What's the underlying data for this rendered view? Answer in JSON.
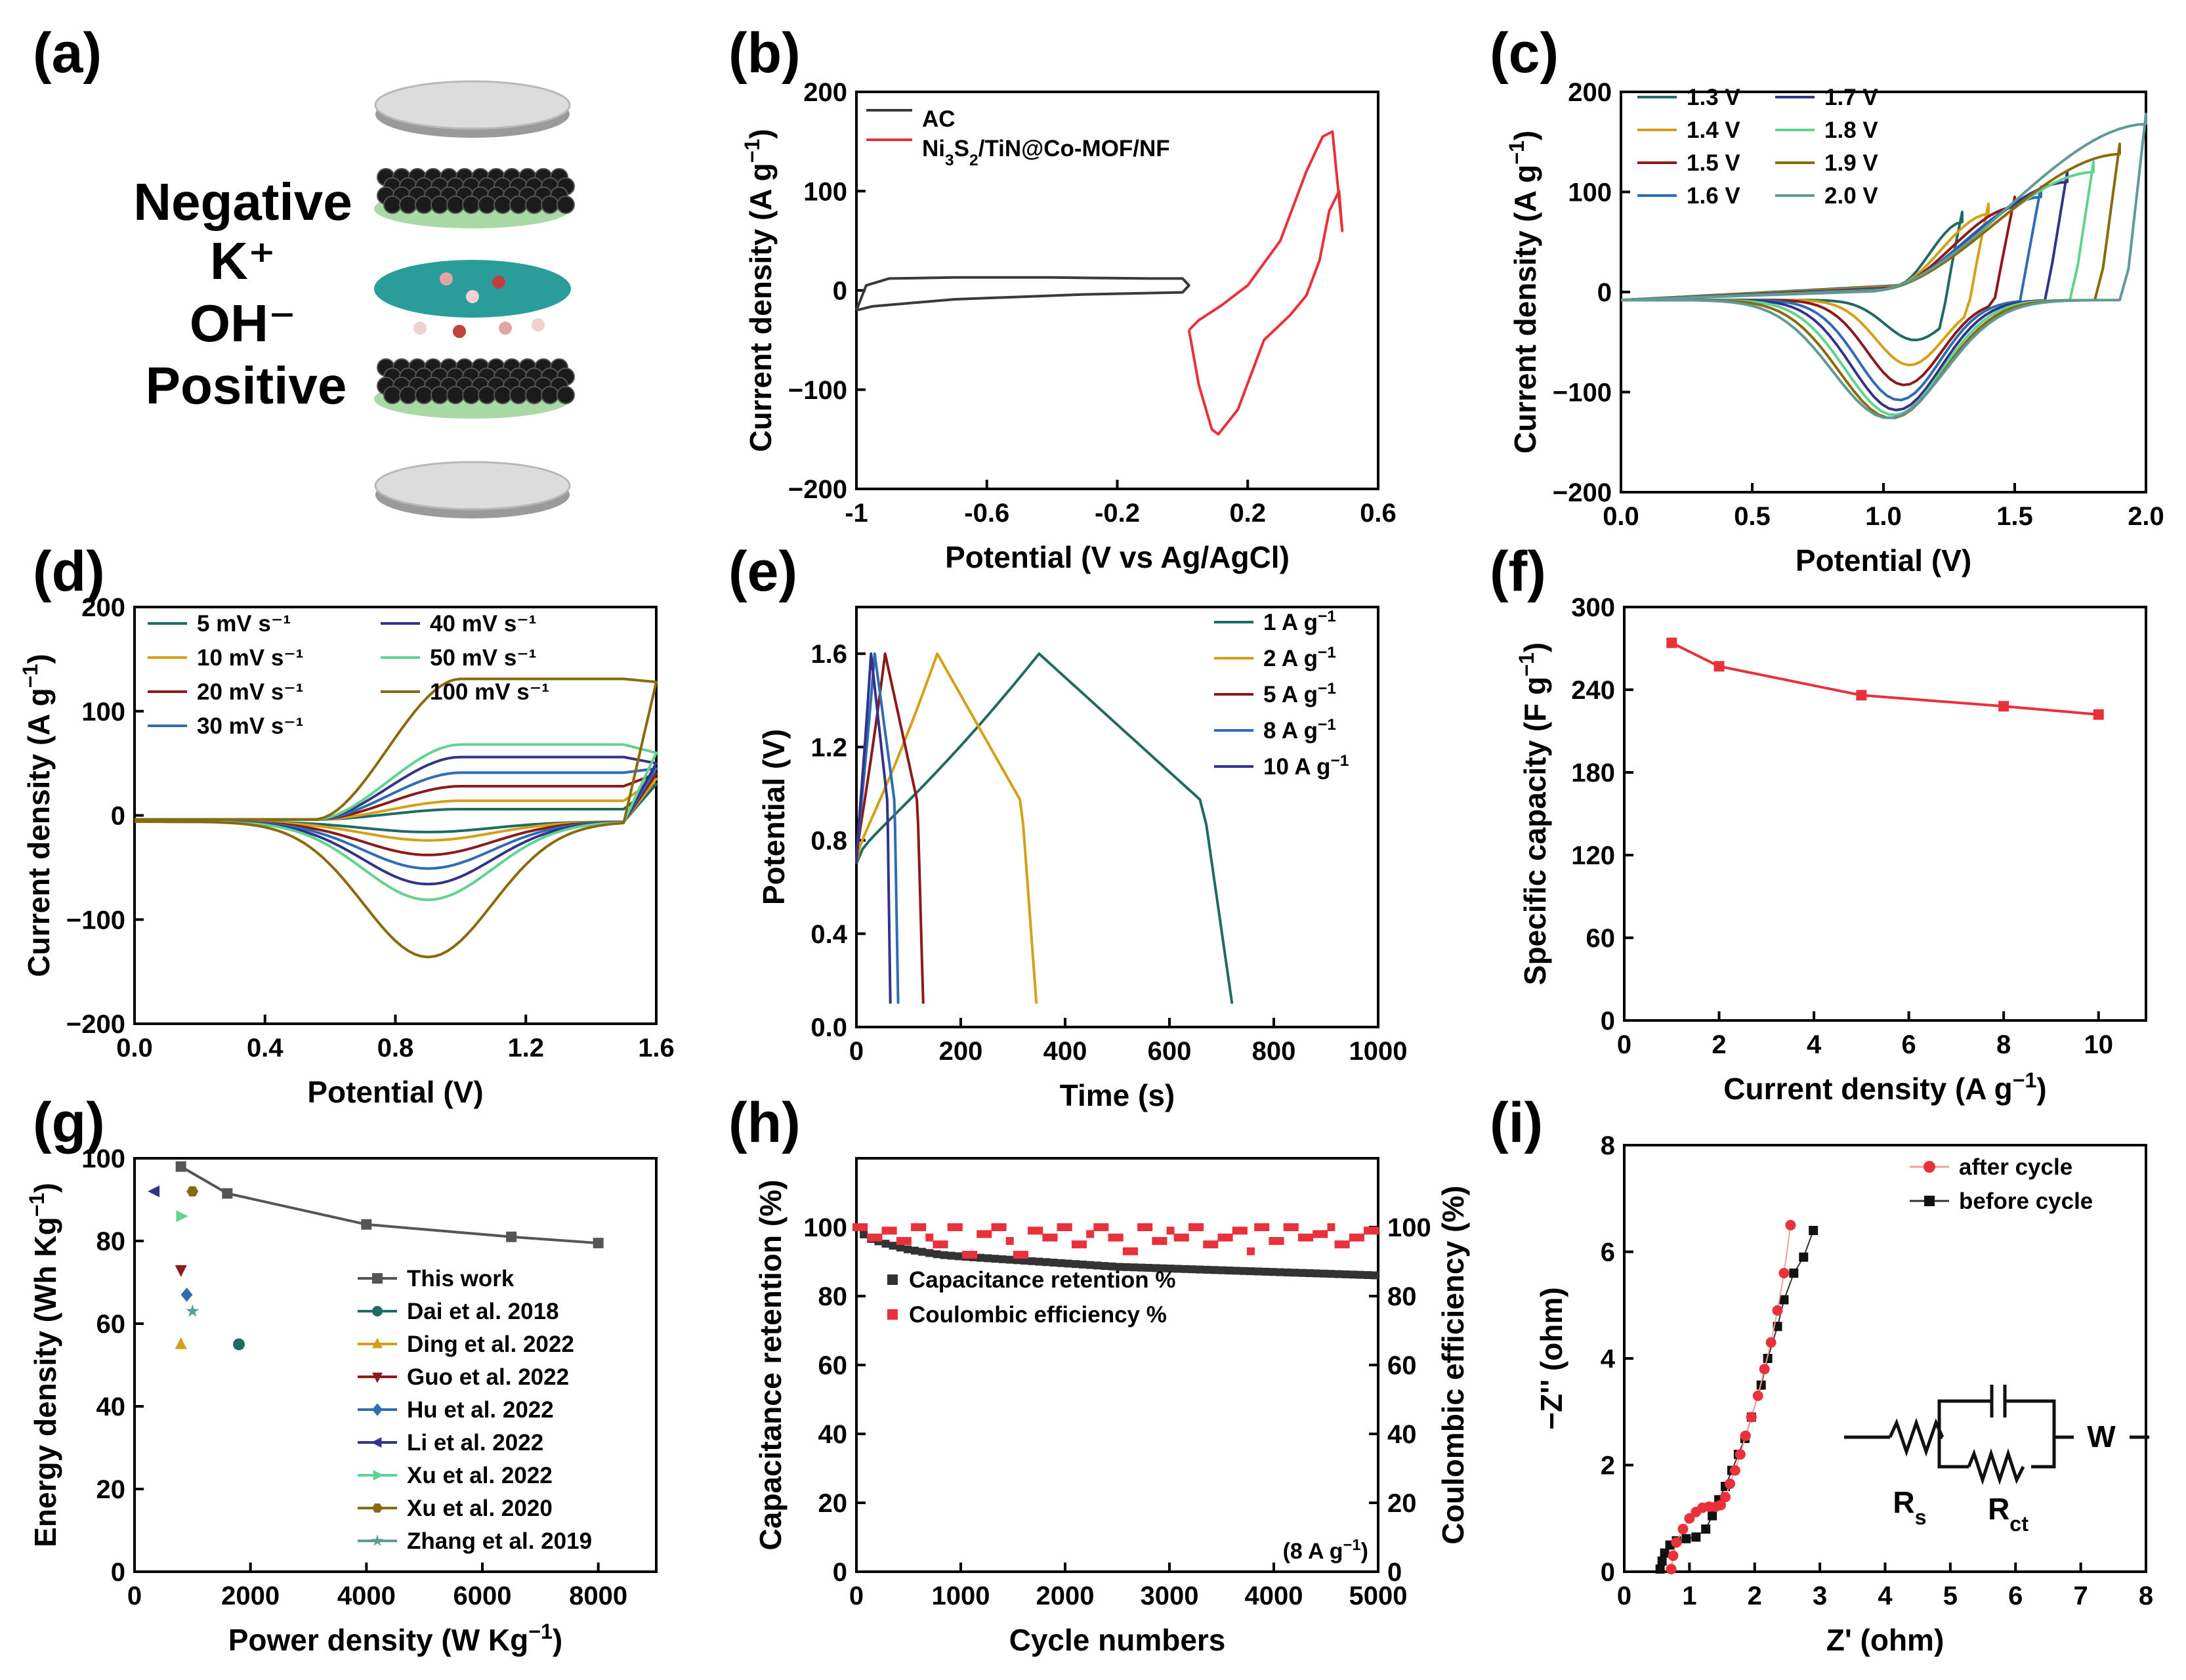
{
  "panel_labels": [
    "(a)",
    "(b)",
    "(c)",
    "(d)",
    "(e)",
    "(f)",
    "(g)",
    "(h)",
    "(i)"
  ],
  "scheme": {
    "negative": "Negative",
    "cation": "K⁺",
    "anion": "OH⁻",
    "positive": "Positive"
  },
  "colors": {
    "ac": "#3a3a3a",
    "ni3s2": "#e8313a",
    "red_marker": "#e8313a",
    "black_marker": "#333333",
    "cv_series": [
      "#1f6b62",
      "#d4a017",
      "#8b1a1a",
      "#2e6db4",
      "#33338c",
      "#5fd38f",
      "#8a6a0c",
      "#5f9a98"
    ]
  },
  "chart_data": [
    {
      "id": "b",
      "type": "line",
      "xlabel": "Potential (V vs Ag/AgCl)",
      "ylabel": "Current density (A g⁻¹)",
      "xlim": [
        -1,
        0.6
      ],
      "ylim": [
        -200,
        200
      ],
      "xticks": [
        "-1",
        "-0.6",
        "-0.2",
        "0.2",
        "0.6"
      ],
      "yticks": [
        "−200",
        "−100",
        "0",
        "100",
        "200"
      ],
      "legend": [
        "AC",
        "Ni3S2/TiN@Co-MOF/NF"
      ],
      "series": [
        {
          "name": "AC",
          "x": [
            -1.0,
            -0.97,
            -0.9,
            -0.7,
            -0.4,
            -0.1,
            0.0,
            0.02,
            0.0,
            -0.3,
            -0.7,
            -0.95,
            -1.0
          ],
          "y": [
            -20,
            5,
            12,
            13,
            13,
            12,
            12,
            5,
            -2,
            -4,
            -9,
            -16,
            -20
          ]
        },
        {
          "name": "Ni3S2/TiN@Co-MOF/NF",
          "x": [
            0.02,
            0.05,
            0.09,
            0.11,
            0.17,
            0.25,
            0.33,
            0.38,
            0.42,
            0.45,
            0.48,
            0.49,
            0.46,
            0.43,
            0.38,
            0.3,
            0.2,
            0.12,
            0.05,
            0.02
          ],
          "y": [
            -40,
            -95,
            -140,
            -145,
            -120,
            -50,
            -25,
            -5,
            30,
            80,
            100,
            60,
            160,
            155,
            120,
            50,
            5,
            -15,
            -30,
            -40
          ]
        }
      ]
    },
    {
      "id": "c",
      "type": "line",
      "xlabel": "Potential (V)",
      "ylabel": "Current density (A g⁻¹)",
      "xlim": [
        0.0,
        2.0
      ],
      "ylim": [
        -200,
        200
      ],
      "xticks": [
        "0.0",
        "0.5",
        "1.0",
        "1.5",
        "2.0"
      ],
      "yticks": [
        "−200",
        "−100",
        "0",
        "100",
        "200"
      ],
      "legend": [
        "1.3 V",
        "1.4 V",
        "1.5 V",
        "1.6 V",
        "1.7 V",
        "1.8 V",
        "1.9 V",
        "2.0 V"
      ],
      "vmax": [
        1.3,
        1.4,
        1.5,
        1.6,
        1.7,
        1.8,
        1.9,
        2.0
      ],
      "ox_peak": [
        80,
        88,
        95,
        105,
        120,
        130,
        148,
        178
      ],
      "red_peak": [
        -40,
        -65,
        -85,
        -100,
        -110,
        -115,
        -118,
        -118
      ],
      "red_peak_pos": [
        1.12,
        1.1,
        1.08,
        1.06,
        1.05,
        1.04,
        1.03,
        1.02
      ]
    },
    {
      "id": "d",
      "type": "line",
      "xlabel": "Potential (V)",
      "ylabel": "Current density (A g⁻¹)",
      "xlim": [
        0.0,
        1.6
      ],
      "ylim": [
        -200,
        200
      ],
      "xticks": [
        "0.0",
        "0.4",
        "0.8",
        "1.2",
        "1.6"
      ],
      "yticks": [
        "−200",
        "−100",
        "0",
        "100",
        "200"
      ],
      "legend": [
        "5 mV s⁻¹",
        "10 mV s⁻¹",
        "20 mV s⁻¹",
        "30 mV s⁻¹",
        "40 mV s⁻¹",
        "50 mV s⁻¹",
        "100 mV s⁻¹"
      ],
      "ox_plateau": [
        10,
        18,
        32,
        45,
        60,
        72,
        135
      ],
      "red_peak": [
        -10,
        -18,
        -32,
        -45,
        -60,
        -75,
        -130
      ],
      "end_current": [
        30,
        35,
        40,
        45,
        50,
        60,
        128
      ]
    },
    {
      "id": "e",
      "type": "line",
      "xlabel": "Time (s)",
      "ylabel": "Potential (V)",
      "xlim": [
        0,
        1000
      ],
      "ylim": [
        0.0,
        1.8
      ],
      "xticks": [
        "0",
        "200",
        "400",
        "600",
        "800",
        "1000"
      ],
      "yticks": [
        "0.0",
        "0.4",
        "0.8",
        "1.2",
        "1.6"
      ],
      "legend": [
        "1 A g⁻¹",
        "2 A g⁻¹",
        "5 A g⁻¹",
        "8 A g⁻¹",
        "10 A g⁻¹"
      ],
      "charge_time": [
        350,
        155,
        55,
        35,
        28
      ],
      "end_time": [
        720,
        345,
        128,
        80,
        65
      ]
    },
    {
      "id": "f",
      "type": "line",
      "xlabel": "Current density (A g⁻¹)",
      "ylabel": "Specific capacity (F g⁻¹)",
      "xlim": [
        0,
        11
      ],
      "ylim": [
        0,
        300
      ],
      "xticks": [
        "0",
        "2",
        "4",
        "6",
        "8",
        "10"
      ],
      "yticks": [
        "0",
        "60",
        "120",
        "180",
        "240",
        "300"
      ],
      "x": [
        1,
        2,
        5,
        8,
        10
      ],
      "y": [
        274,
        257,
        236,
        228,
        222
      ]
    },
    {
      "id": "g",
      "type": "scatter",
      "xlabel": "Power density (W Kg⁻¹)",
      "ylabel": "Energy density (Wh Kg⁻¹)",
      "xlim": [
        0,
        9000
      ],
      "ylim": [
        0,
        100
      ],
      "xticks": [
        "0",
        "2000",
        "4000",
        "6000",
        "8000"
      ],
      "yticks": [
        "0",
        "20",
        "40",
        "60",
        "80",
        "100"
      ],
      "this_work": {
        "name": "This work",
        "x": [
          800,
          1600,
          4000,
          6500,
          8000
        ],
        "y": [
          98,
          91.5,
          84,
          81,
          79.5
        ]
      },
      "references": [
        {
          "name": "Dai et al. 2018",
          "x": 1800,
          "y": 55,
          "marker": "circle",
          "color": "#1f6b62"
        },
        {
          "name": "Ding et al. 2022",
          "x": 800,
          "y": 55,
          "marker": "triangle-up",
          "color": "#d4a017"
        },
        {
          "name": "Guo et al. 2022",
          "x": 800,
          "y": 73,
          "marker": "triangle-down",
          "color": "#8b1a1a"
        },
        {
          "name": "Hu et al. 2022",
          "x": 900,
          "y": 67,
          "marker": "diamond",
          "color": "#2e6db4"
        },
        {
          "name": "Li et al. 2022",
          "x": 350,
          "y": 92,
          "marker": "triangle-left",
          "color": "#33338c"
        },
        {
          "name": "Xu et al. 2022",
          "x": 800,
          "y": 86,
          "marker": "triangle-right",
          "color": "#5fd38f"
        },
        {
          "name": "Xu et al. 2020",
          "x": 1000,
          "y": 92,
          "marker": "hexagon",
          "color": "#8a6a0c"
        },
        {
          "name": "Zhang et al. 2019",
          "x": 1000,
          "y": 63,
          "marker": "star",
          "color": "#5f9a98"
        }
      ]
    },
    {
      "id": "h",
      "type": "scatter",
      "xlabel": "Cycle numbers",
      "ylabel": "Capacitance retention (%)",
      "ylabel_right": "Coulombic efficiency (%)",
      "xlim": [
        0,
        5000
      ],
      "ylim": [
        0,
        120
      ],
      "xticks": [
        "0",
        "1000",
        "2000",
        "3000",
        "4000",
        "5000"
      ],
      "yticks": [
        "0",
        "20",
        "40",
        "60",
        "80",
        "100"
      ],
      "legend": [
        "Capacitance retention %",
        "Coulombic efficiency %"
      ],
      "note": "(8 A g⁻¹)",
      "retention_x": [
        0,
        100,
        300,
        500,
        800,
        1000,
        1500,
        2000,
        2500,
        3000,
        3500,
        4000,
        4500,
        5000
      ],
      "retention_y": [
        100,
        97,
        95,
        93.5,
        92,
        91.5,
        90.5,
        89.5,
        88.5,
        88,
        87.5,
        87,
        86.5,
        86
      ],
      "efficiency_y": [
        100,
        97,
        99,
        96,
        100,
        97,
        95,
        100,
        92,
        98,
        100,
        96,
        92,
        99,
        97,
        100,
        95,
        98,
        100,
        97,
        93,
        100,
        96,
        99,
        97,
        100,
        95,
        97,
        99,
        93,
        100,
        96,
        100,
        97,
        98,
        100,
        95,
        97,
        99,
        100
      ]
    },
    {
      "id": "i",
      "type": "scatter",
      "xlabel": "Z' (ohm)",
      "ylabel": "−Z'' (ohm)",
      "xlim": [
        0,
        8
      ],
      "ylim": [
        0,
        8
      ],
      "xticks": [
        "0",
        "1",
        "2",
        "3",
        "4",
        "5",
        "6",
        "7",
        "8"
      ],
      "yticks": [
        "0",
        "2",
        "4",
        "6",
        "8"
      ],
      "legend": [
        "after cycle",
        "before cycle"
      ],
      "circuit_labels": [
        "R",
        "s",
        "R",
        "ct",
        "W"
      ],
      "after_x": [
        0.72,
        0.75,
        0.8,
        0.9,
        1.0,
        1.1,
        1.2,
        1.3,
        1.4,
        1.48,
        1.55,
        1.62,
        1.7,
        1.78,
        1.86,
        1.95,
        2.05,
        2.15,
        2.25,
        2.35,
        2.45,
        2.55
      ],
      "after_y": [
        0.05,
        0.3,
        0.55,
        0.8,
        1.0,
        1.12,
        1.2,
        1.22,
        1.22,
        1.25,
        1.4,
        1.65,
        1.9,
        2.2,
        2.55,
        2.9,
        3.3,
        3.8,
        4.3,
        4.9,
        5.6,
        6.5
      ],
      "before_x": [
        0.55,
        0.58,
        0.62,
        0.7,
        0.8,
        0.95,
        1.1,
        1.25,
        1.35,
        1.45,
        1.55,
        1.65,
        1.75,
        1.85,
        1.95,
        2.1,
        2.2,
        2.35,
        2.45,
        2.6,
        2.75,
        2.9
      ],
      "before_y": [
        0.05,
        0.2,
        0.35,
        0.5,
        0.58,
        0.62,
        0.65,
        0.8,
        1.05,
        1.35,
        1.6,
        1.9,
        2.2,
        2.5,
        2.9,
        3.5,
        4.0,
        4.6,
        5.1,
        5.6,
        5.9,
        6.4
      ]
    }
  ]
}
